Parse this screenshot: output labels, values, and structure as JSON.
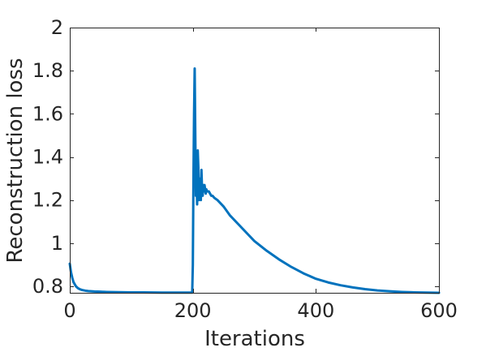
{
  "chart_data": {
    "type": "line",
    "title": "",
    "xlabel": "Iterations",
    "ylabel": "Reconstruction loss",
    "xlim": [
      0,
      600
    ],
    "ylim": [
      0.77,
      2
    ],
    "xticks": [
      0,
      200,
      400,
      600
    ],
    "yticks": [
      0.8,
      1,
      1.2,
      1.4,
      1.6,
      1.8,
      2
    ],
    "xtick_labels": [
      "0",
      "200",
      "400",
      "600"
    ],
    "ytick_labels": [
      "0.8",
      "1",
      "1.2",
      "1.4",
      "1.6",
      "1.8",
      "2"
    ],
    "grid": false,
    "box": true,
    "line_color": "#0072BD",
    "series": [
      {
        "x": [
          0,
          2,
          4,
          6,
          8,
          10,
          13,
          16,
          20,
          25,
          30,
          40,
          50,
          60,
          80,
          100,
          120,
          150,
          180,
          199,
          200,
          201,
          202,
          203,
          204,
          205,
          206,
          207,
          208,
          209,
          210,
          211,
          212,
          213,
          214,
          215,
          216,
          217,
          218,
          219,
          220,
          221,
          222,
          223,
          224,
          226,
          228,
          230,
          232,
          235,
          240,
          250,
          260,
          280,
          300,
          320,
          340,
          360,
          380,
          400,
          420,
          440,
          460,
          480,
          500,
          520,
          540,
          560,
          580,
          600
        ],
        "y": [
          0.905,
          0.865,
          0.84,
          0.82,
          0.81,
          0.8,
          0.792,
          0.787,
          0.783,
          0.78,
          0.778,
          0.776,
          0.775,
          0.774,
          0.773,
          0.772,
          0.772,
          0.771,
          0.771,
          0.771,
          0.9,
          1.3,
          1.6,
          1.81,
          1.5,
          1.22,
          1.31,
          1.18,
          1.43,
          1.35,
          1.2,
          1.25,
          1.3,
          1.2,
          1.34,
          1.25,
          1.22,
          1.27,
          1.24,
          1.27,
          1.25,
          1.23,
          1.25,
          1.24,
          1.24,
          1.24,
          1.23,
          1.22,
          1.22,
          1.21,
          1.2,
          1.17,
          1.13,
          1.07,
          1.01,
          0.965,
          0.925,
          0.89,
          0.86,
          0.835,
          0.818,
          0.805,
          0.795,
          0.787,
          0.781,
          0.777,
          0.774,
          0.772,
          0.771,
          0.77
        ]
      }
    ]
  }
}
